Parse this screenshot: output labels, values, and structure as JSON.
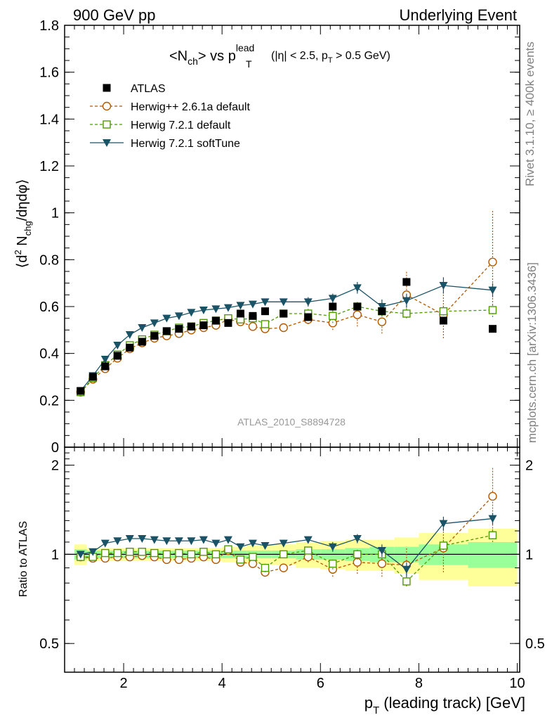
{
  "header": {
    "left": "900 GeV pp",
    "right": "Underlying Event"
  },
  "plot_title": {
    "main": "<N",
    "main_sub": "ch",
    "main_mid": "> vs p",
    "main_sup": "lead",
    "main_sub2": "T",
    "cut_open": "(|η| < 2.5, p",
    "cut_sub": "T",
    "cut_close": " > 0.5 GeV)"
  },
  "side_labels": {
    "rivet": "Rivet 3.1.10, ≥ 400k events",
    "mcplots": "mcplots.cern.ch [arXiv:1306.3436]"
  },
  "analysis_label": "ATLAS_2010_S8894728",
  "chart_data": [
    {
      "type": "scatter",
      "panel": "main",
      "title": "<Nch> vs pT lead (|η| < 2.5, pT > 0.5 GeV)",
      "ylabel": "⟨d² Nchg/dηdφ⟩",
      "xlabel": "",
      "xlim": [
        0.8,
        10.05
      ],
      "ylim": [
        0,
        1.8
      ],
      "x_ticks": [
        2,
        4,
        6,
        8,
        10
      ],
      "y_ticks": [
        "0",
        "0.2",
        "0.4",
        "0.6",
        "0.8",
        "1",
        "1.2",
        "1.4",
        "1.6",
        "1.8"
      ],
      "legend_position": "top-left",
      "x": [
        1.125,
        1.375,
        1.625,
        1.875,
        2.125,
        2.375,
        2.625,
        2.875,
        3.125,
        3.375,
        3.625,
        3.875,
        4.125,
        4.375,
        4.625,
        4.875,
        5.25,
        5.75,
        6.25,
        6.75,
        7.25,
        7.75,
        8.5,
        9.5
      ],
      "series": [
        {
          "name": "ATLAS",
          "values": [
            0.24,
            0.3,
            0.345,
            0.39,
            0.425,
            0.45,
            0.475,
            0.495,
            0.505,
            0.515,
            0.52,
            0.54,
            0.53,
            0.57,
            0.56,
            0.58,
            0.57,
            0.555,
            0.6,
            0.6,
            0.58,
            0.705,
            0.54,
            0.505
          ]
        },
        {
          "name": "Herwig++ 2.6.1a default",
          "values": [
            0.235,
            0.29,
            0.335,
            0.38,
            0.42,
            0.445,
            0.465,
            0.475,
            0.485,
            0.5,
            0.51,
            0.52,
            0.545,
            0.535,
            0.515,
            0.505,
            0.51,
            0.545,
            0.53,
            0.565,
            0.535,
            0.65,
            0.565,
            0.79
          ],
          "errors": [
            0.005,
            0.005,
            0.005,
            0.005,
            0.005,
            0.006,
            0.006,
            0.006,
            0.007,
            0.007,
            0.008,
            0.008,
            0.009,
            0.01,
            0.012,
            0.014,
            0.015,
            0.02,
            0.03,
            0.05,
            0.05,
            0.1,
            0.1,
            0.22
          ]
        },
        {
          "name": "Herwig 7.2.1 default",
          "values": [
            0.235,
            0.295,
            0.35,
            0.395,
            0.435,
            0.46,
            0.48,
            0.495,
            0.51,
            0.515,
            0.53,
            0.54,
            0.55,
            0.545,
            0.55,
            0.525,
            0.57,
            0.57,
            0.56,
            0.6,
            0.58,
            0.57,
            0.58,
            0.585
          ],
          "errors": [
            0.005,
            0.005,
            0.005,
            0.005,
            0.005,
            0.006,
            0.006,
            0.006,
            0.007,
            0.007,
            0.008,
            0.008,
            0.009,
            0.01,
            0.012,
            0.014,
            0.015,
            0.02,
            0.03,
            0.02,
            0.02,
            0.02,
            0.03,
            0.03
          ]
        },
        {
          "name": "Herwig 7.2.1 softTune",
          "values": [
            0.24,
            0.305,
            0.375,
            0.435,
            0.48,
            0.51,
            0.53,
            0.55,
            0.56,
            0.575,
            0.585,
            0.59,
            0.595,
            0.605,
            0.61,
            0.62,
            0.62,
            0.62,
            0.635,
            0.68,
            0.6,
            0.625,
            0.69,
            0.67
          ],
          "errors": [
            0.005,
            0.005,
            0.005,
            0.005,
            0.005,
            0.006,
            0.006,
            0.006,
            0.007,
            0.007,
            0.008,
            0.008,
            0.009,
            0.01,
            0.012,
            0.014,
            0.015,
            0.02,
            0.02,
            0.025,
            0.03,
            0.03,
            0.035,
            0.03
          ]
        }
      ]
    },
    {
      "type": "line",
      "panel": "ratio",
      "ylabel": "Ratio to ATLAS",
      "xlabel": "pT (leading track) [GeV]",
      "xlim": [
        0.8,
        10.05
      ],
      "ylim": [
        0.4,
        2.3
      ],
      "y_scale": "log",
      "x_ticks": [
        2,
        4,
        6,
        8,
        10
      ],
      "y_ticks": [
        "0.5",
        "1",
        "2"
      ],
      "reference_line": 1,
      "band_edges": [
        1.0,
        1.25,
        1.5,
        1.75,
        2.0,
        2.25,
        2.5,
        2.75,
        3.0,
        3.25,
        3.5,
        3.75,
        4.0,
        4.25,
        4.5,
        4.75,
        5.0,
        5.5,
        6.0,
        6.5,
        7.0,
        7.5,
        8.0,
        9.0,
        10.0
      ],
      "band_stat_halfwidth": [
        0.04,
        0.03,
        0.03,
        0.03,
        0.03,
        0.03,
        0.03,
        0.03,
        0.03,
        0.03,
        0.03,
        0.03,
        0.03,
        0.03,
        0.03,
        0.03,
        0.03,
        0.04,
        0.04,
        0.05,
        0.06,
        0.06,
        0.08,
        0.1
      ],
      "band_total_halfwidth": [
        0.08,
        0.05,
        0.05,
        0.05,
        0.05,
        0.05,
        0.05,
        0.05,
        0.05,
        0.05,
        0.05,
        0.05,
        0.06,
        0.06,
        0.07,
        0.07,
        0.08,
        0.1,
        0.11,
        0.12,
        0.12,
        0.14,
        0.18,
        0.22
      ],
      "series": [
        {
          "name": "Herwig++ 2.6.1a default",
          "values": [
            0.98,
            0.97,
            0.97,
            0.98,
            0.98,
            0.99,
            0.98,
            0.96,
            0.96,
            0.97,
            0.98,
            0.96,
            1.03,
            0.94,
            0.93,
            0.87,
            0.9,
            0.98,
            0.89,
            0.94,
            0.93,
            0.92,
            1.05,
            1.57
          ],
          "errors": [
            0.02,
            0.02,
            0.02,
            0.02,
            0.02,
            0.02,
            0.02,
            0.02,
            0.02,
            0.02,
            0.02,
            0.02,
            0.02,
            0.02,
            0.03,
            0.03,
            0.03,
            0.04,
            0.05,
            0.08,
            0.09,
            0.14,
            0.18,
            0.4
          ]
        },
        {
          "name": "Herwig 7.2.1 default",
          "values": [
            0.98,
            0.98,
            1.01,
            1.01,
            1.02,
            1.02,
            1.01,
            1.0,
            1.01,
            1.0,
            1.02,
            1.0,
            1.04,
            0.96,
            0.98,
            0.9,
            1.0,
            1.03,
            0.93,
            1.0,
            1.0,
            0.81,
            1.07,
            1.16
          ],
          "errors": [
            0.02,
            0.02,
            0.02,
            0.02,
            0.02,
            0.02,
            0.02,
            0.02,
            0.02,
            0.02,
            0.02,
            0.02,
            0.02,
            0.02,
            0.02,
            0.03,
            0.03,
            0.03,
            0.04,
            0.04,
            0.04,
            0.03,
            0.06,
            0.06
          ]
        },
        {
          "name": "Herwig 7.2.1 softTune",
          "values": [
            1.0,
            1.02,
            1.09,
            1.11,
            1.13,
            1.13,
            1.12,
            1.11,
            1.11,
            1.11,
            1.12,
            1.09,
            1.12,
            1.06,
            1.09,
            1.07,
            1.09,
            1.12,
            1.06,
            1.13,
            1.03,
            0.89,
            1.27,
            1.32
          ],
          "errors": [
            0.02,
            0.02,
            0.02,
            0.02,
            0.02,
            0.02,
            0.02,
            0.02,
            0.02,
            0.02,
            0.02,
            0.02,
            0.02,
            0.02,
            0.02,
            0.03,
            0.03,
            0.03,
            0.04,
            0.04,
            0.05,
            0.05,
            0.07,
            0.06
          ]
        }
      ]
    }
  ],
  "styles": {
    "ATLAS": {
      "color": "#000000",
      "marker": "filled-square",
      "dash": ""
    },
    "Herwig++ 2.6.1a default": {
      "color": "#b35900",
      "marker": "open-circle",
      "dash": "4,3"
    },
    "Herwig 7.2.1 default": {
      "color": "#4f9a00",
      "marker": "open-square",
      "dash": "4,3"
    },
    "Herwig 7.2.1 softTune": {
      "color": "#1a5266",
      "marker": "filled-triangle-down",
      "dash": ""
    },
    "band_total_color": "#ffff99",
    "band_stat_color": "#99ff99"
  }
}
